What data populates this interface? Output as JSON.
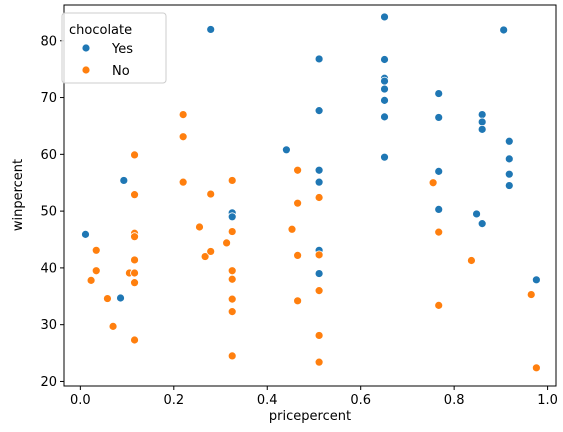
{
  "chart_data": {
    "type": "scatter",
    "xlabel": "pricepercent",
    "ylabel": "winpercent",
    "xlim": [
      -0.035,
      1.018
    ],
    "ylim": [
      19.2,
      86.3
    ],
    "xticks": [
      0.0,
      0.2,
      0.4,
      0.6,
      0.8,
      1.0
    ],
    "xtick_labels": [
      "0.0",
      "0.2",
      "0.4",
      "0.6",
      "0.8",
      "1.0"
    ],
    "yticks": [
      20,
      30,
      40,
      50,
      60,
      70,
      80
    ],
    "ytick_labels": [
      "20",
      "30",
      "40",
      "50",
      "60",
      "70",
      "80"
    ],
    "grid": false,
    "legend": {
      "title": "chocolate",
      "placement": "top-left"
    },
    "series": [
      {
        "name": "Yes",
        "color": "#1f77b4",
        "points": [
          [
            0.011,
            45.9
          ],
          [
            0.093,
            55.4
          ],
          [
            0.086,
            34.7
          ],
          [
            0.279,
            82.0
          ],
          [
            0.325,
            49.7
          ],
          [
            0.325,
            49.0
          ],
          [
            0.441,
            60.8
          ],
          [
            0.511,
            76.8
          ],
          [
            0.511,
            67.7
          ],
          [
            0.511,
            57.2
          ],
          [
            0.511,
            55.1
          ],
          [
            0.511,
            43.1
          ],
          [
            0.511,
            39.0
          ],
          [
            0.651,
            84.2
          ],
          [
            0.651,
            76.7
          ],
          [
            0.651,
            73.4
          ],
          [
            0.651,
            72.9
          ],
          [
            0.651,
            71.5
          ],
          [
            0.651,
            69.5
          ],
          [
            0.651,
            66.6
          ],
          [
            0.651,
            59.5
          ],
          [
            0.767,
            70.7
          ],
          [
            0.767,
            66.5
          ],
          [
            0.767,
            57.0
          ],
          [
            0.767,
            50.3
          ],
          [
            0.848,
            49.5
          ],
          [
            0.86,
            67.0
          ],
          [
            0.86,
            65.7
          ],
          [
            0.86,
            64.4
          ],
          [
            0.86,
            47.8
          ],
          [
            0.906,
            81.9
          ],
          [
            0.918,
            62.3
          ],
          [
            0.918,
            59.2
          ],
          [
            0.918,
            56.5
          ],
          [
            0.918,
            54.5
          ],
          [
            0.976,
            37.9
          ]
        ]
      },
      {
        "name": "No",
        "color": "#ff7f0e",
        "points": [
          [
            0.023,
            37.8
          ],
          [
            0.034,
            43.1
          ],
          [
            0.034,
            39.5
          ],
          [
            0.058,
            34.6
          ],
          [
            0.07,
            29.7
          ],
          [
            0.105,
            39.1
          ],
          [
            0.116,
            59.9
          ],
          [
            0.116,
            52.9
          ],
          [
            0.116,
            46.1
          ],
          [
            0.116,
            45.5
          ],
          [
            0.116,
            41.4
          ],
          [
            0.116,
            39.1
          ],
          [
            0.116,
            37.4
          ],
          [
            0.116,
            27.3
          ],
          [
            0.22,
            67.0
          ],
          [
            0.22,
            63.1
          ],
          [
            0.22,
            55.1
          ],
          [
            0.255,
            47.2
          ],
          [
            0.267,
            42.0
          ],
          [
            0.279,
            53.0
          ],
          [
            0.279,
            42.9
          ],
          [
            0.313,
            44.4
          ],
          [
            0.325,
            55.4
          ],
          [
            0.325,
            46.4
          ],
          [
            0.325,
            39.5
          ],
          [
            0.325,
            38.0
          ],
          [
            0.325,
            34.5
          ],
          [
            0.325,
            32.3
          ],
          [
            0.325,
            24.5
          ],
          [
            0.453,
            46.8
          ],
          [
            0.465,
            57.2
          ],
          [
            0.465,
            51.4
          ],
          [
            0.465,
            42.2
          ],
          [
            0.465,
            34.2
          ],
          [
            0.511,
            52.4
          ],
          [
            0.511,
            42.3
          ],
          [
            0.511,
            36.0
          ],
          [
            0.511,
            28.1
          ],
          [
            0.511,
            23.4
          ],
          [
            0.755,
            55.0
          ],
          [
            0.767,
            46.3
          ],
          [
            0.767,
            33.4
          ],
          [
            0.837,
            41.3
          ],
          [
            0.965,
            35.3
          ],
          [
            0.976,
            22.4
          ]
        ]
      }
    ]
  }
}
